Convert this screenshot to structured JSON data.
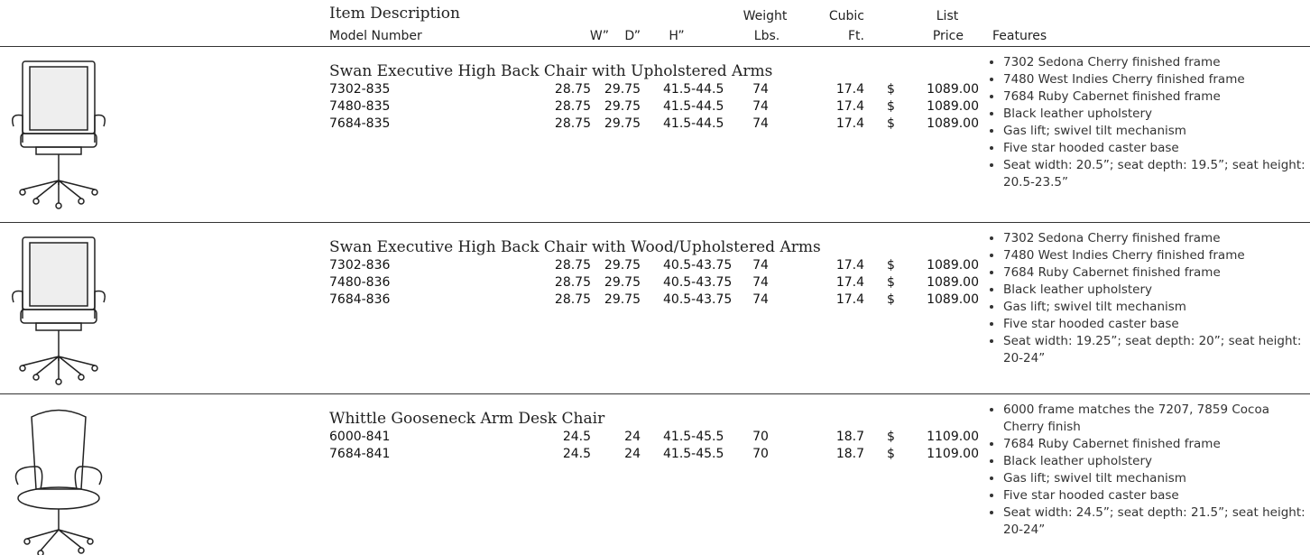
{
  "header": {
    "item_description": "Item Description",
    "model_number": "Model Number",
    "w": "W”",
    "d": "D”",
    "h": "H”",
    "weight": "Weight",
    "weight_unit": "Lbs.",
    "cubic": "Cubic",
    "cubic_unit": "Ft.",
    "list": "List",
    "price": "Price",
    "features": "Features"
  },
  "sections": [
    {
      "title": "Swan Executive High Back Chair with Upholstered Arms",
      "rows": [
        [
          "7302-835",
          "28.75",
          "29.75",
          "41.5-44.5",
          "74",
          "17.4",
          "$",
          "1089.00"
        ],
        [
          "7480-835",
          "28.75",
          "29.75",
          "41.5-44.5",
          "74",
          "17.4",
          "$",
          "1089.00"
        ],
        [
          "7684-835",
          "28.75",
          "29.75",
          "41.5-44.5",
          "74",
          "17.4",
          "$",
          "1089.00"
        ]
      ],
      "features": [
        "7302 Sedona Cherry finished frame",
        "7480 West Indies Cherry finished frame",
        "7684 Ruby Cabernet finished frame",
        "Black leather upholstery",
        "Gas lift; swivel tilt mechanism",
        "Five star hooded caster base",
        "Seat width: 20.5”; seat depth: 19.5”; seat height: 20.5-23.5”"
      ]
    },
    {
      "title": "Swan Executive High Back Chair with Wood/Upholstered Arms",
      "rows": [
        [
          "7302-836",
          "28.75",
          "29.75",
          "40.5-43.75",
          "74",
          "17.4",
          "$",
          "1089.00"
        ],
        [
          "7480-836",
          "28.75",
          "29.75",
          "40.5-43.75",
          "74",
          "17.4",
          "$",
          "1089.00"
        ],
        [
          "7684-836",
          "28.75",
          "29.75",
          "40.5-43.75",
          "74",
          "17.4",
          "$",
          "1089.00"
        ]
      ],
      "features": [
        "7302 Sedona Cherry finished frame",
        "7480 West Indies Cherry finished frame",
        "7684 Ruby Cabernet finished frame",
        "Black leather upholstery",
        "Gas lift; swivel tilt mechanism",
        "Five star hooded caster base",
        "Seat width: 19.25”; seat depth: 20”; seat height: 20-24”"
      ]
    },
    {
      "title": "Whittle Gooseneck Arm Desk Chair",
      "rows": [
        [
          "6000-841",
          "24.5",
          "24",
          "41.5-45.5",
          "70",
          "18.7",
          "$",
          "1109.00"
        ],
        [
          "7684-841",
          "24.5",
          "24",
          "41.5-45.5",
          "70",
          "18.7",
          "$",
          "1109.00"
        ]
      ],
      "features": [
        "6000 frame matches the 7207, 7859 Cocoa Cherry finish",
        "7684 Ruby Cabernet finished frame",
        "Black leather upholstery",
        "Gas lift; swivel tilt mechanism",
        "Five star hooded caster base",
        "Seat width: 24.5”; seat depth: 21.5”; seat height: 20-24”"
      ]
    }
  ]
}
